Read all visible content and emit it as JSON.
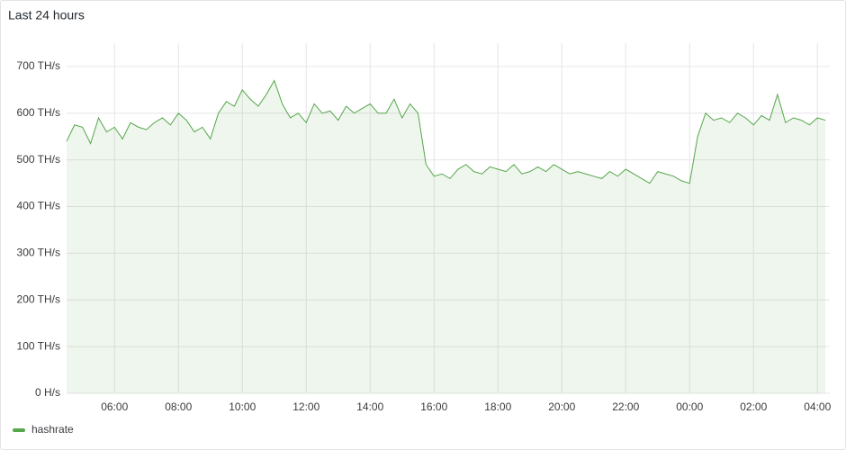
{
  "chart_data": {
    "type": "line",
    "title": "Last 24 hours",
    "categories": [
      "04:30",
      "04:45",
      "05:00",
      "05:15",
      "05:30",
      "05:45",
      "06:00",
      "06:15",
      "06:30",
      "06:45",
      "07:00",
      "07:15",
      "07:30",
      "07:45",
      "08:00",
      "08:15",
      "08:30",
      "08:45",
      "09:00",
      "09:15",
      "09:30",
      "09:45",
      "10:00",
      "10:15",
      "10:30",
      "10:45",
      "11:00",
      "11:15",
      "11:30",
      "11:45",
      "12:00",
      "12:15",
      "12:30",
      "12:45",
      "13:00",
      "13:15",
      "13:30",
      "13:45",
      "14:00",
      "14:15",
      "14:30",
      "14:45",
      "15:00",
      "15:15",
      "15:30",
      "15:45",
      "16:00",
      "16:15",
      "16:30",
      "16:45",
      "17:00",
      "17:15",
      "17:30",
      "17:45",
      "18:00",
      "18:15",
      "18:30",
      "18:45",
      "19:00",
      "19:15",
      "19:30",
      "19:45",
      "20:00",
      "20:15",
      "20:30",
      "20:45",
      "21:00",
      "21:15",
      "21:30",
      "21:45",
      "22:00",
      "22:15",
      "22:30",
      "22:45",
      "23:00",
      "23:15",
      "23:30",
      "23:45",
      "00:00",
      "00:15",
      "00:30",
      "00:45",
      "01:00",
      "01:15",
      "01:30",
      "01:45",
      "02:00",
      "02:15",
      "02:30",
      "02:45",
      "03:00",
      "03:15",
      "03:30",
      "03:45",
      "04:00",
      "04:15"
    ],
    "series": [
      {
        "name": "hashrate",
        "color": "#56a64b",
        "values": [
          540,
          575,
          570,
          535,
          590,
          560,
          570,
          545,
          580,
          570,
          565,
          580,
          590,
          575,
          600,
          585,
          560,
          570,
          545,
          600,
          625,
          615,
          650,
          630,
          615,
          640,
          670,
          620,
          590,
          600,
          580,
          620,
          600,
          605,
          585,
          615,
          600,
          610,
          620,
          600,
          600,
          630,
          590,
          620,
          600,
          490,
          465,
          470,
          460,
          480,
          490,
          475,
          470,
          485,
          480,
          475,
          490,
          470,
          475,
          485,
          475,
          490,
          480,
          470,
          475,
          470,
          465,
          460,
          475,
          465,
          480,
          470,
          460,
          450,
          475,
          470,
          465,
          455,
          450,
          550,
          600,
          585,
          590,
          580,
          600,
          590,
          575,
          595,
          585,
          640,
          580,
          590,
          585,
          575,
          590,
          585
        ]
      }
    ],
    "xticks": [
      "06:00",
      "08:00",
      "10:00",
      "12:00",
      "14:00",
      "16:00",
      "18:00",
      "20:00",
      "22:00",
      "00:00",
      "02:00",
      "04:00"
    ],
    "ylim": [
      0,
      750
    ],
    "yticks": [
      {
        "value": 0,
        "label": "0 H/s"
      },
      {
        "value": 100,
        "label": "100 TH/s"
      },
      {
        "value": 200,
        "label": "200 TH/s"
      },
      {
        "value": 300,
        "label": "300 TH/s"
      },
      {
        "value": 400,
        "label": "400 TH/s"
      },
      {
        "value": 500,
        "label": "500 TH/s"
      },
      {
        "value": 600,
        "label": "600 TH/s"
      },
      {
        "value": 700,
        "label": "700 TH/s"
      }
    ],
    "grid": true,
    "legend": "bottom-left"
  }
}
